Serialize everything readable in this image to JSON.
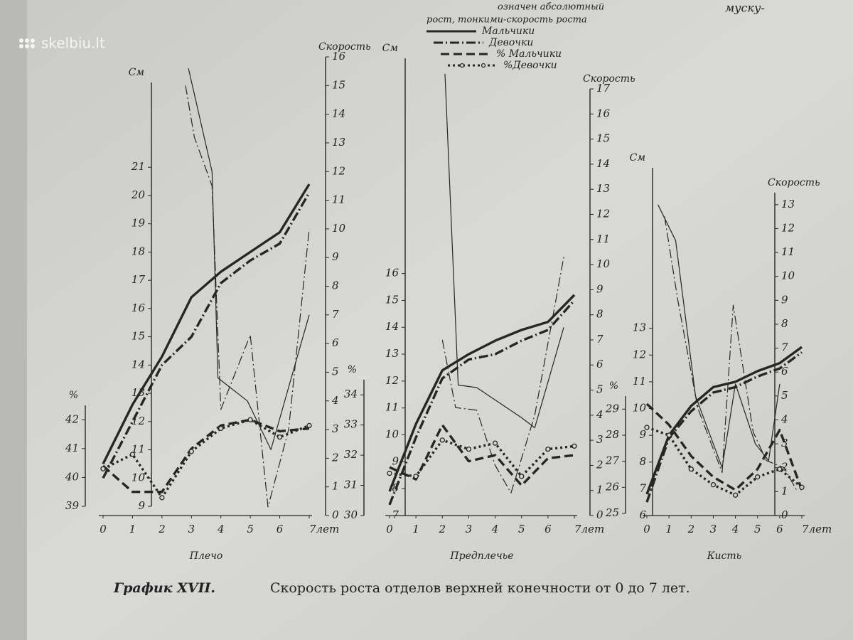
{
  "page": {
    "watermark": "skelbiu.lt",
    "corner_text": "муску-",
    "legend_note": [
      "означен абсолютный",
      "рост, тонкими-скорость роста"
    ],
    "legend": [
      {
        "label": "Мальчики",
        "style": "solid"
      },
      {
        "label": "Девочки",
        "style": "dashdot"
      },
      {
        "label": "% Мальчики",
        "style": "dashed"
      },
      {
        "label": "%Девочки",
        "style": "dotcircle"
      }
    ],
    "caption_label": "График XVII.",
    "caption_text": "Скорость роста отделов верхней конечности от 0 до 7 лет."
  },
  "chart_data": [
    {
      "type": "line",
      "title": "Плечо",
      "xlim": [
        0,
        7
      ],
      "xticks": [
        0,
        1,
        2,
        3,
        4,
        5,
        6,
        {
          "value": 7,
          "label": "7лет"
        }
      ],
      "ylabel": "См",
      "ylim": [
        9,
        24
      ],
      "yticks": [
        9,
        10,
        11,
        12,
        13,
        14,
        15,
        16,
        17,
        18,
        19,
        20,
        21
      ],
      "y2label": "Скорость",
      "y2lim": [
        0,
        16
      ],
      "y2ticks": [
        0,
        1,
        2,
        3,
        4,
        5,
        6,
        7,
        8,
        9,
        10,
        11,
        12,
        13,
        14,
        15,
        16
      ],
      "y3label": "%",
      "y3lim": [
        39,
        42.5
      ],
      "y3ticks": [
        39,
        40,
        41,
        42
      ],
      "series": [
        {
          "style": "solid",
          "width": "thick",
          "axis": "y",
          "x": [
            0,
            1,
            2,
            3,
            4,
            5,
            6,
            7
          ],
          "values": [
            10.5,
            12.6,
            14.3,
            16.4,
            17.3,
            18.0,
            18.7,
            20.4
          ]
        },
        {
          "style": "dashdot",
          "width": "thick",
          "axis": "y",
          "x": [
            0,
            1,
            2,
            3,
            4,
            5,
            6,
            7
          ],
          "values": [
            10.0,
            12.0,
            14.0,
            15.0,
            16.9,
            17.7,
            18.3,
            20.1
          ]
        },
        {
          "style": "solid",
          "width": "thin",
          "axis": "y2",
          "x": [
            2.9,
            3.7,
            3.9,
            4.9,
            5.7,
            7
          ],
          "values": [
            15.6,
            12.0,
            4.8,
            4.0,
            2.3,
            7.0
          ]
        },
        {
          "style": "dashdot",
          "width": "thin",
          "axis": "y2",
          "x": [
            2.8,
            3.1,
            3.7,
            4.0,
            5.0,
            5.6,
            6.3,
            7
          ],
          "values": [
            15.0,
            13.2,
            11.5,
            3.7,
            6.3,
            0.3,
            3.0,
            10.0
          ]
        },
        {
          "style": "dashed",
          "width": "thick",
          "axis": "y3",
          "x": [
            0,
            1,
            2,
            3,
            4,
            5,
            6,
            7
          ],
          "values": [
            40.4,
            39.5,
            39.5,
            41.0,
            41.8,
            42.0,
            41.6,
            41.7
          ]
        },
        {
          "style": "dotcircle",
          "width": "thick",
          "axis": "y3",
          "x": [
            0,
            1,
            2,
            3,
            4,
            5,
            6,
            7
          ],
          "values": [
            40.3,
            40.8,
            39.3,
            40.9,
            41.7,
            42.0,
            41.4,
            41.8
          ]
        }
      ]
    },
    {
      "type": "line",
      "title": "Предплечье",
      "xlim": [
        0,
        7
      ],
      "xticks": [
        0,
        1,
        2,
        3,
        4,
        5,
        6,
        {
          "value": 7,
          "label": "7лет"
        }
      ],
      "ylabel": "См",
      "ylim": [
        7,
        24
      ],
      "yticks": [
        7,
        8,
        9,
        10,
        11,
        12,
        13,
        14,
        15,
        16
      ],
      "y2label": "Скорость",
      "y2lim": [
        0,
        17
      ],
      "y2ticks": [
        0,
        1,
        2,
        3,
        4,
        5,
        6,
        7,
        8,
        9,
        10,
        11,
        12,
        13,
        14,
        15,
        16,
        17
      ],
      "y3label": "%",
      "y3lim": [
        30,
        34.5
      ],
      "y3ticks": [
        30,
        31,
        32,
        33,
        34
      ],
      "series": [
        {
          "style": "solid",
          "width": "thick",
          "axis": "y",
          "x": [
            0,
            1,
            2,
            3,
            4,
            5,
            6,
            7
          ],
          "values": [
            7.9,
            10.4,
            12.4,
            13.0,
            13.5,
            13.9,
            14.2,
            15.2
          ]
        },
        {
          "style": "dashdot",
          "width": "thick",
          "axis": "y",
          "x": [
            0,
            1,
            2,
            3,
            4,
            5,
            6,
            7
          ],
          "values": [
            7.4,
            9.9,
            12.1,
            12.8,
            13.0,
            13.5,
            13.9,
            15.0
          ]
        },
        {
          "style": "solid",
          "width": "thin",
          "axis": "y2",
          "x": [
            2.1,
            2.6,
            3.3,
            5,
            5.5,
            6.6
          ],
          "values": [
            17.6,
            5.2,
            5.1,
            3.9,
            3.5,
            7.5
          ]
        },
        {
          "style": "dashdot",
          "width": "thin",
          "axis": "y2",
          "x": [
            2.0,
            2.5,
            3.3,
            4,
            4.6,
            5.5,
            6.6
          ],
          "values": [
            7.0,
            4.3,
            4.2,
            2.0,
            0.9,
            4.0,
            10.3
          ]
        },
        {
          "style": "dashed",
          "width": "thick",
          "axis": "y3",
          "x": [
            0,
            1,
            2,
            3,
            4,
            5,
            6,
            7
          ],
          "values": [
            31.6,
            31.2,
            33.0,
            31.8,
            32.0,
            31.0,
            31.9,
            32.0
          ]
        },
        {
          "style": "dotcircle",
          "width": "thick",
          "axis": "y3",
          "x": [
            0,
            1,
            2,
            3,
            4,
            5,
            6,
            7
          ],
          "values": [
            31.4,
            31.3,
            32.5,
            32.2,
            32.4,
            31.3,
            32.2,
            32.3
          ]
        }
      ]
    },
    {
      "type": "line",
      "title": "Кисть",
      "xlim": [
        0,
        7
      ],
      "xticks": [
        0,
        1,
        2,
        3,
        4,
        5,
        6,
        {
          "value": 7,
          "label": "7лет"
        }
      ],
      "ylabel": "См",
      "ylim": [
        6,
        19
      ],
      "yticks": [
        6,
        7,
        8,
        9,
        10,
        11,
        12,
        13
      ],
      "y2label": "Скорость",
      "y2lim": [
        0,
        13.5
      ],
      "y2ticks": [
        0,
        1,
        2,
        3,
        4,
        5,
        6,
        7,
        8,
        9,
        10,
        11,
        12,
        13
      ],
      "y3label": "%",
      "y3lim": [
        25,
        29.5
      ],
      "y3ticks": [
        25,
        26,
        27,
        28,
        29
      ],
      "series": [
        {
          "style": "solid",
          "width": "thick",
          "axis": "y",
          "x": [
            0,
            1,
            2,
            3,
            4,
            5,
            6,
            7
          ],
          "values": [
            6.8,
            9.0,
            10.1,
            10.8,
            11.0,
            11.4,
            11.7,
            12.3
          ]
        },
        {
          "style": "dashdot",
          "width": "thick",
          "axis": "y",
          "x": [
            0,
            1,
            2,
            3,
            4,
            5,
            6,
            7
          ],
          "values": [
            6.5,
            8.9,
            9.9,
            10.6,
            10.8,
            11.2,
            11.5,
            12.1
          ]
        },
        {
          "style": "solid",
          "width": "thin",
          "axis": "y2",
          "x": [
            0.5,
            1.3,
            2.2,
            3.4,
            4.0,
            4.9,
            5.5,
            6.0
          ],
          "values": [
            13.0,
            11.5,
            5.0,
            2.0,
            5.5,
            3.0,
            2.3,
            5.5
          ]
        },
        {
          "style": "dashdot",
          "width": "thin",
          "axis": "y2",
          "x": [
            0.8,
            1.4,
            2.3,
            3.4,
            3.9,
            4.8,
            5.4,
            6.2,
            6.8
          ],
          "values": [
            12.5,
            9.0,
            4.5,
            1.8,
            8.8,
            3.5,
            2.3,
            2.0,
            1.0
          ]
        },
        {
          "style": "dashed",
          "width": "thick",
          "axis": "y3",
          "x": [
            0,
            1,
            2,
            3,
            4,
            5,
            6,
            7
          ],
          "values": [
            29.2,
            28.4,
            27.2,
            26.4,
            25.9,
            26.7,
            28.2,
            25.9
          ]
        },
        {
          "style": "dotcircle",
          "width": "thick",
          "axis": "y3",
          "x": [
            0,
            1,
            2,
            3,
            4,
            5,
            6,
            7
          ],
          "values": [
            28.3,
            28.0,
            26.7,
            26.1,
            25.7,
            26.4,
            26.7,
            26.0
          ]
        }
      ]
    }
  ]
}
